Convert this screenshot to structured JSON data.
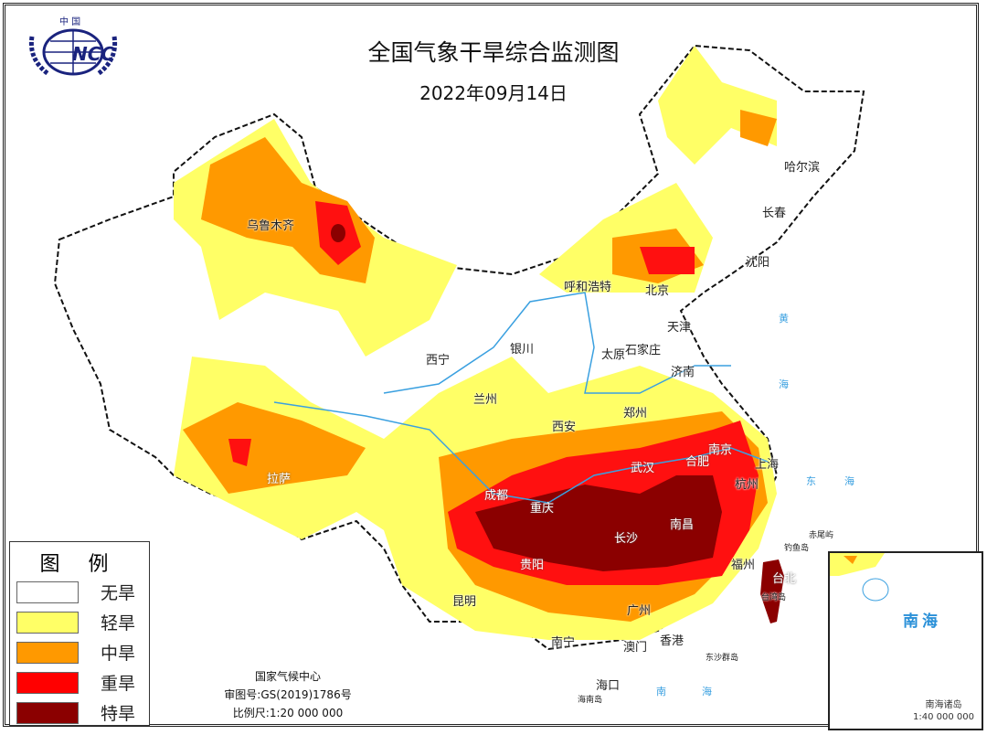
{
  "header": {
    "title": "全国气象干旱综合监测图",
    "date": "2022年09月14日"
  },
  "logo": {
    "text_top": "中国",
    "text_main": "NCC"
  },
  "legend": {
    "title": "图 例",
    "items": [
      {
        "label": "无旱",
        "color": "#ffffff"
      },
      {
        "label": "轻旱",
        "color": "#ffff66"
      },
      {
        "label": "中旱",
        "color": "#ff9900"
      },
      {
        "label": "重旱",
        "color": "#ff0000"
      },
      {
        "label": "特旱",
        "color": "#8b0000"
      }
    ]
  },
  "credits": {
    "org": "国家气候中心",
    "approval": "审图号:GS(2019)1786号",
    "scale": "比例尺:1:20 000 000"
  },
  "cities": [
    "乌鲁木齐",
    "哈尔滨",
    "长春",
    "沈阳",
    "呼和浩特",
    "北京",
    "天津",
    "石家庄",
    "太原",
    "济南",
    "银川",
    "西宁",
    "兰州",
    "西安",
    "郑州",
    "武汉",
    "合肥",
    "南京",
    "上海",
    "杭州",
    "成都",
    "重庆",
    "长沙",
    "南昌",
    "福州",
    "台北",
    "贵阳",
    "昆明",
    "南宁",
    "广州",
    "澳门",
    "香港",
    "海口",
    "拉萨"
  ],
  "places": [
    "海南岛",
    "东沙群岛",
    "钓鱼岛",
    "赤尾屿",
    "台湾岛"
  ],
  "seas": [
    "南",
    "海",
    "东",
    "海",
    "黄",
    "海"
  ],
  "inset": {
    "sea": "南海",
    "caption": "南海诸岛",
    "scale": "1:40 000 000"
  }
}
